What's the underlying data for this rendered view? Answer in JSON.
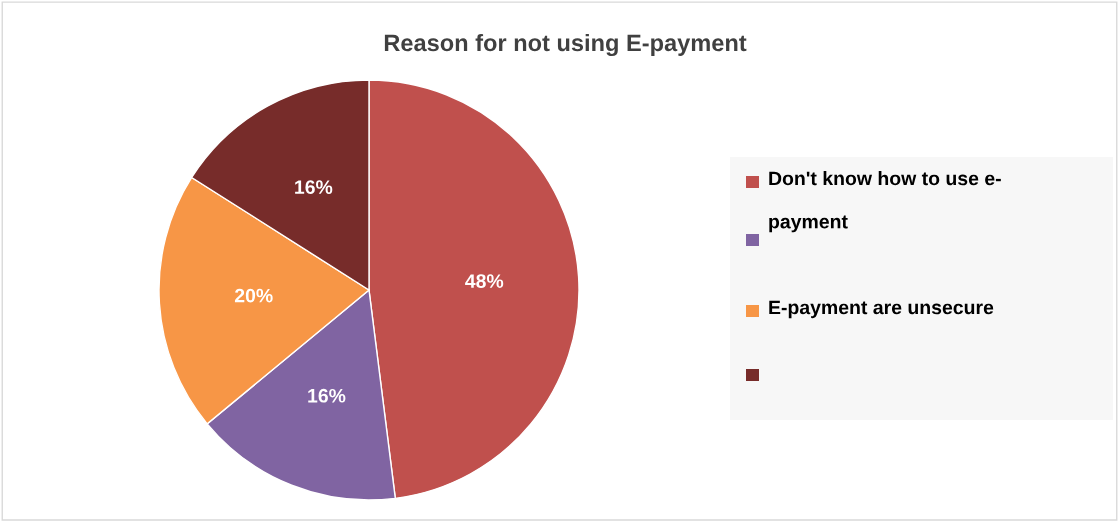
{
  "chart_data": {
    "type": "pie",
    "title": "Reason for not using E-payment",
    "categories": [
      "Don't know how to use e-\npayment",
      null,
      "E-payment are unsecure",
      null
    ],
    "values": [
      48,
      16,
      20,
      16
    ],
    "value_labels": [
      "48%",
      "16%",
      "20%",
      "16%"
    ],
    "colors": [
      "#c0504d",
      "#8064a2",
      "#f79646",
      "#772c2a"
    ],
    "legend": "right"
  }
}
